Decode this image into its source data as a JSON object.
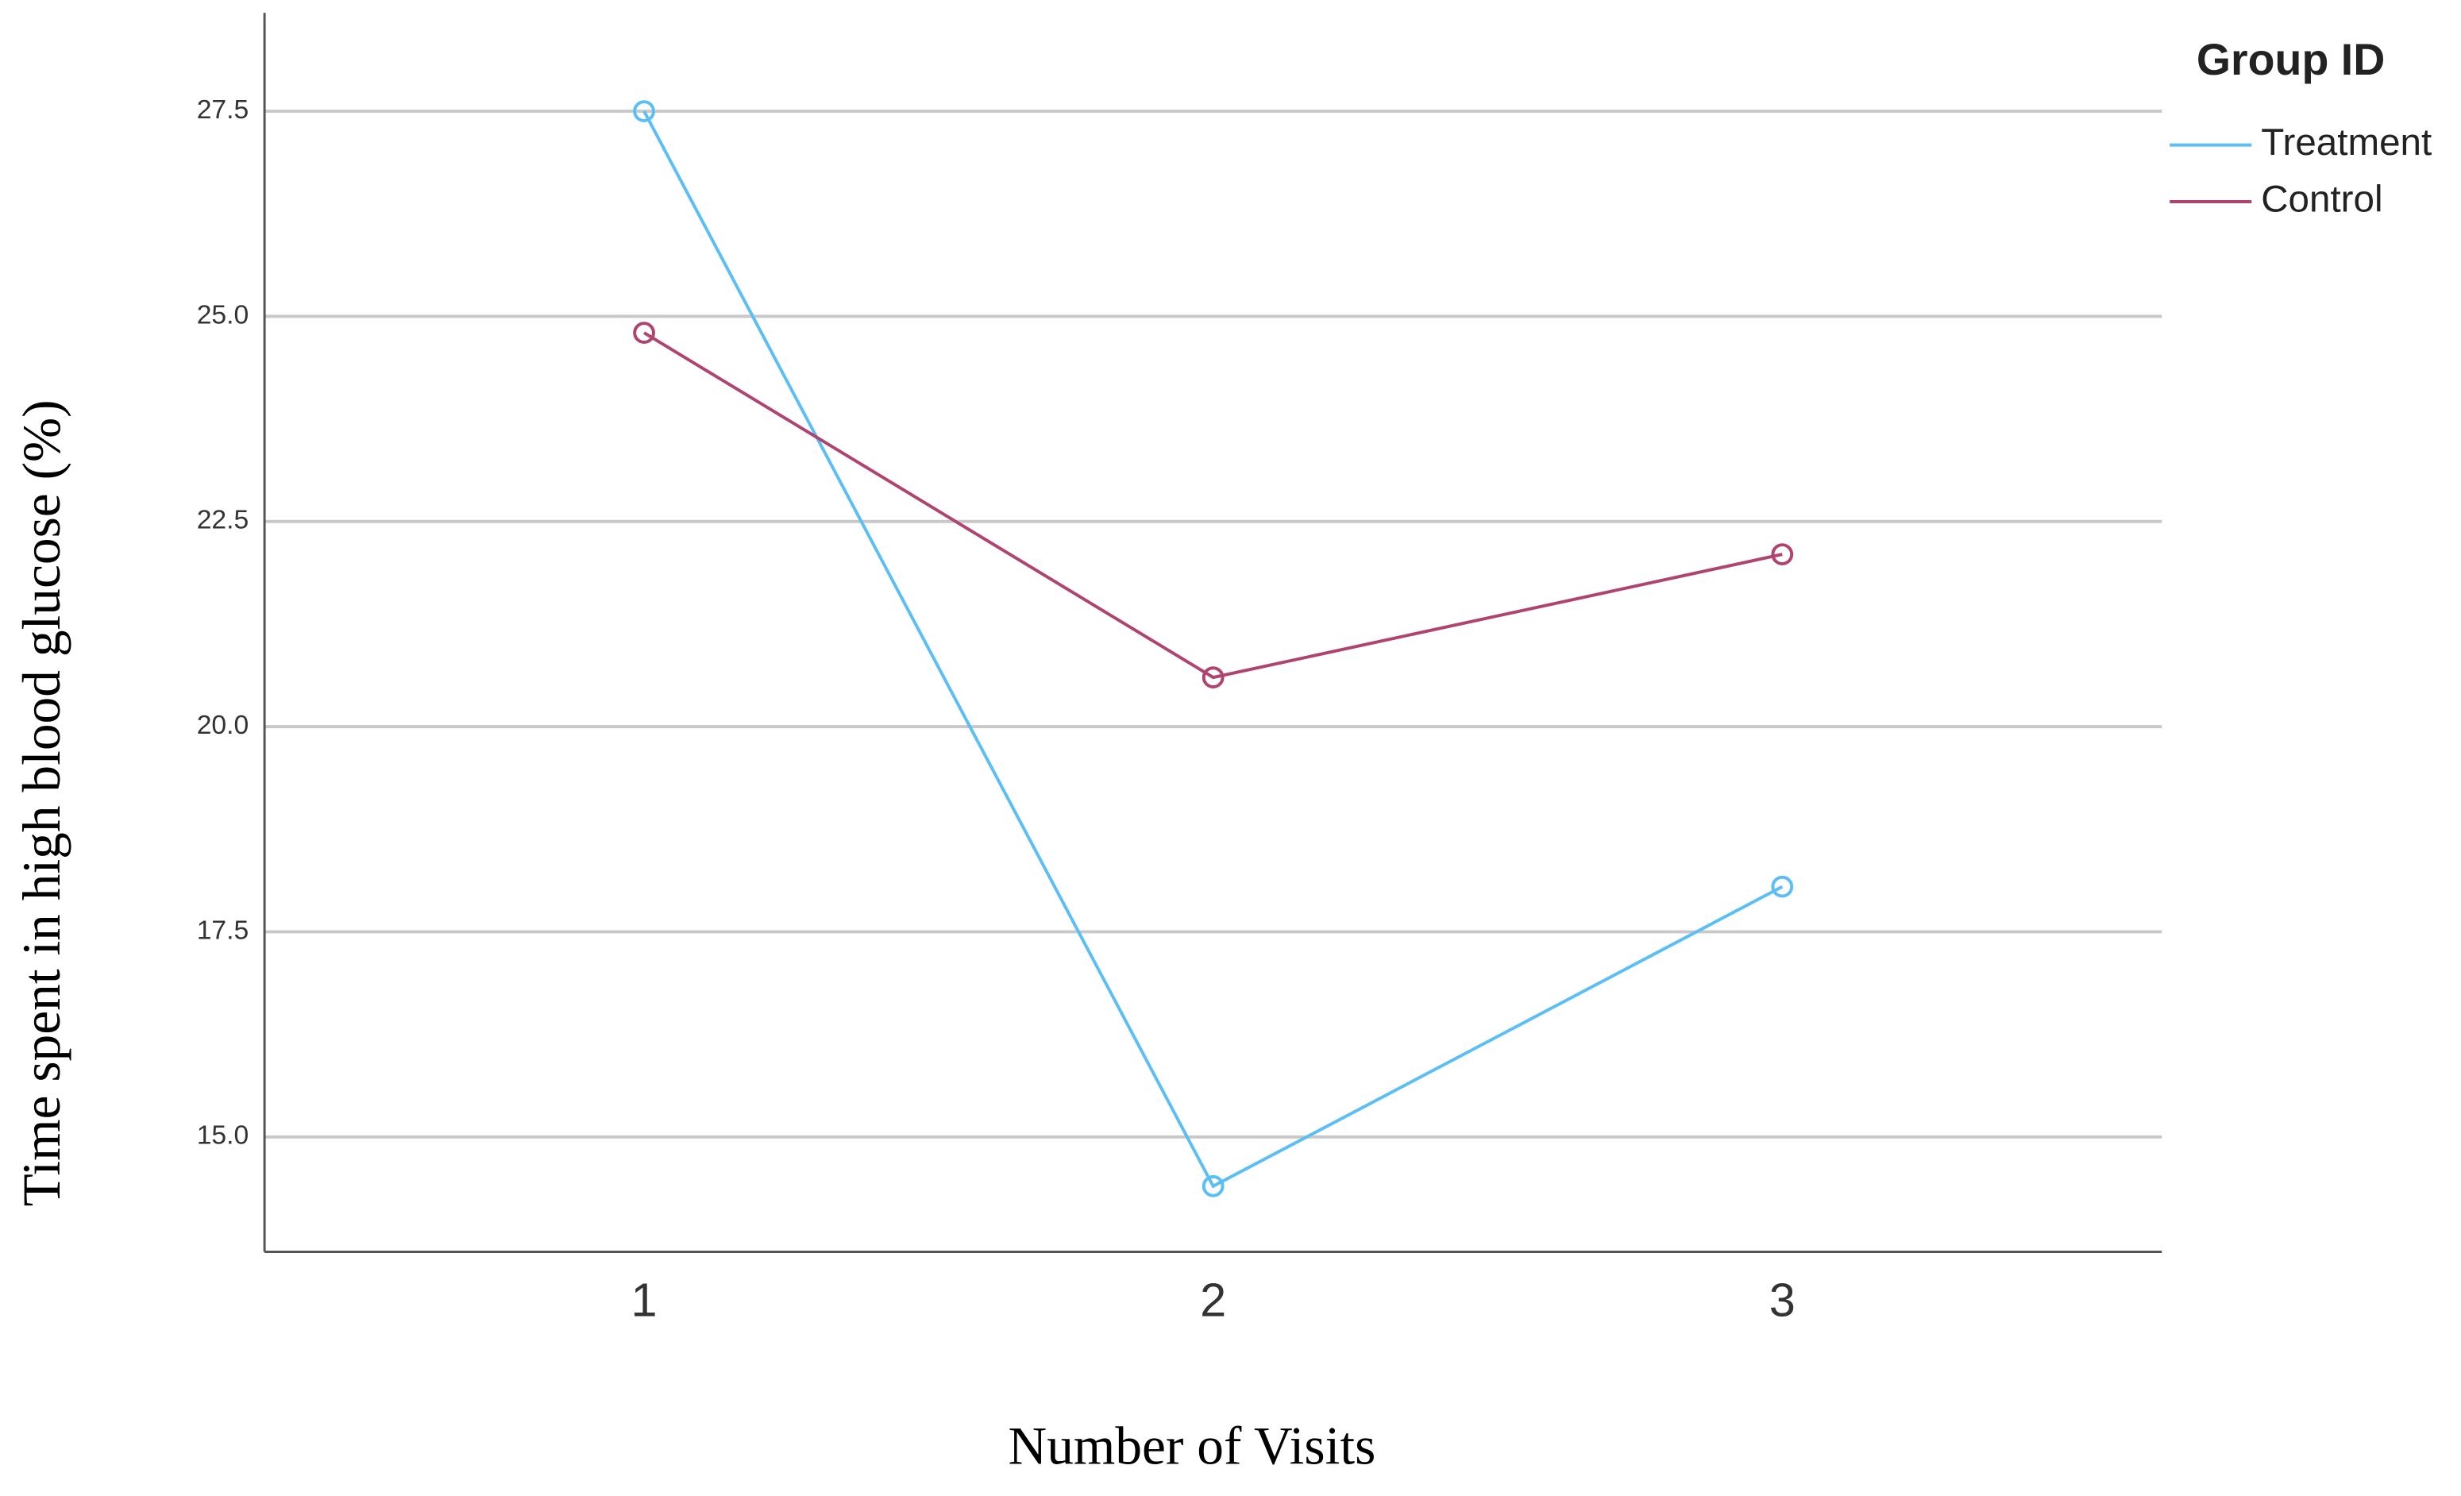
{
  "chart_data": {
    "type": "line",
    "x_label": "Number of Visits",
    "y_label": "Time spent in high blood glucose (%)",
    "legend_title": "Group ID",
    "legend_position": "top-right",
    "categories": [
      "1",
      "2",
      "3"
    ],
    "series": [
      {
        "name": "Treatment",
        "color": "#5bbef4",
        "values": [
          27.5,
          14.4,
          18.05
        ]
      },
      {
        "name": "Control",
        "color": "#b04470",
        "values": [
          24.8,
          20.6,
          22.1
        ]
      }
    ],
    "ylim": [
      13.6,
      28.7
    ],
    "yticks": [
      {
        "value": 15,
        "label": "15.0"
      },
      17.5,
      {
        "value": 20,
        "label": "20.0"
      },
      22.5,
      {
        "value": 25,
        "label": "25.0"
      },
      27.5
    ],
    "grid": true
  }
}
